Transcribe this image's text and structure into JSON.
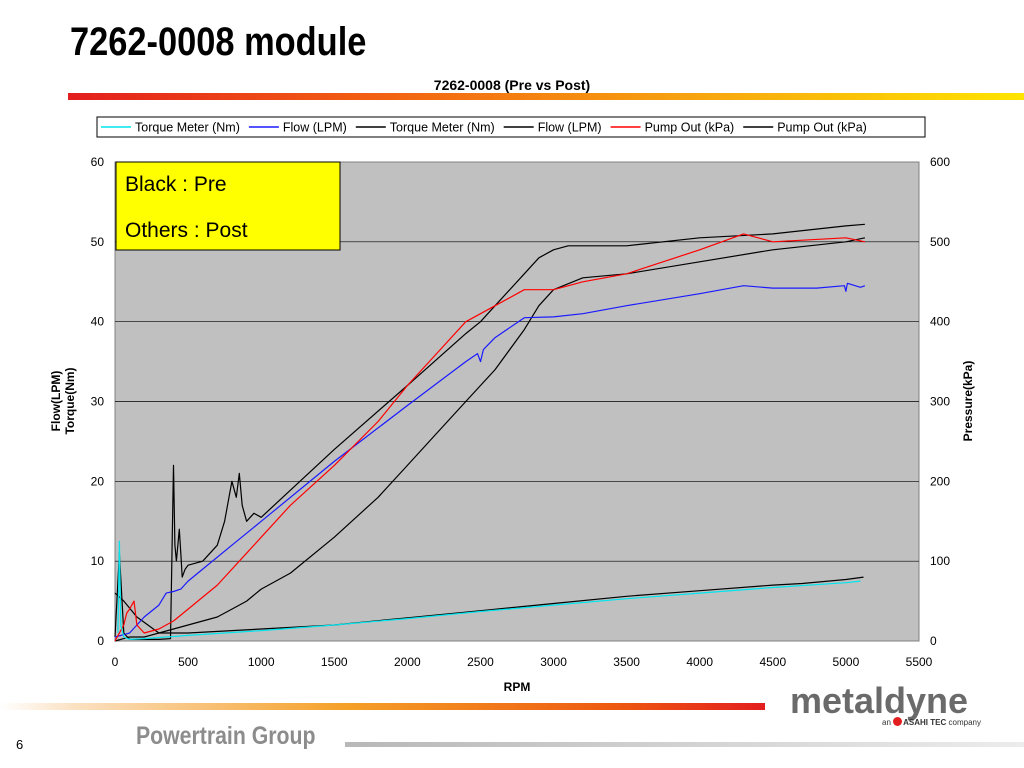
{
  "slide": {
    "title": "7262-0008 module",
    "page_number": "6",
    "footer": "Powertrain Group",
    "logo_text": "metaldyne",
    "logo_prefix": "an",
    "logo_brand": "ASAHI TEC",
    "logo_suffix": "company"
  },
  "annotation": {
    "line1": "Black : Pre",
    "line2": "Others : Post"
  },
  "colors": {
    "plot_background": "#c0c0c0",
    "cyan": "#00e5ee",
    "blue": "#1a1aff",
    "red": "#ff0000",
    "black": "#000000",
    "annotation_fill": "#ffff00"
  },
  "chart_data": {
    "type": "line",
    "title": "7262-0008 (Pre vs Post)",
    "xlabel": "RPM",
    "ylabel_lines": [
      "Flow(LPM)",
      "Torque(Nm)"
    ],
    "y2label": "Pressure(kPa)",
    "xlim": [
      0,
      5500
    ],
    "ylim": [
      0,
      60
    ],
    "y2lim": [
      0,
      600
    ],
    "x_ticks": [
      0,
      500,
      1000,
      1500,
      2000,
      2500,
      3000,
      3500,
      4000,
      4500,
      5000,
      5500
    ],
    "y_ticks": [
      0,
      10,
      20,
      30,
      40,
      50,
      60
    ],
    "y2_ticks": [
      0,
      100,
      200,
      300,
      400,
      500,
      600
    ],
    "grid": "horizontal",
    "legend_position": "top",
    "series": [
      {
        "name": "Torque Meter (Nm)",
        "color": "#00e5ee",
        "axis": "left",
        "x": [
          20,
          30,
          40,
          60,
          100,
          200,
          500,
          1000,
          1500,
          2000,
          2500,
          3000,
          3500,
          4000,
          4500,
          5000,
          5100
        ],
        "y": [
          1,
          12.5,
          2,
          0.5,
          0.2,
          0.3,
          0.7,
          1.3,
          2.0,
          2.8,
          3.7,
          4.5,
          5.3,
          6.0,
          6.7,
          7.3,
          7.5
        ]
      },
      {
        "name": "Flow (LPM)",
        "color": "#1a1aff",
        "axis": "left",
        "x": [
          0,
          100,
          200,
          300,
          350,
          400,
          450,
          500,
          600,
          800,
          1000,
          1500,
          2000,
          2400,
          2480,
          2500,
          2520,
          2600,
          2800,
          3000,
          3200,
          3500,
          4000,
          4300,
          4500,
          4800,
          4990,
          5000,
          5010,
          5100,
          5130
        ],
        "y": [
          0.5,
          1,
          3,
          4.5,
          6,
          6.2,
          6.5,
          7.5,
          9,
          12,
          15,
          22.5,
          29.5,
          35,
          36,
          35,
          36.5,
          38,
          40.5,
          40.6,
          41,
          42,
          43.5,
          44.5,
          44.2,
          44.2,
          44.5,
          43.8,
          44.8,
          44.3,
          44.5
        ]
      },
      {
        "name": "Torque Meter (Nm)",
        "color": "#000000",
        "axis": "left",
        "x": [
          0,
          60,
          150,
          300,
          500,
          1000,
          1500,
          2000,
          2500,
          3000,
          3500,
          4000,
          4500,
          4700,
          5000,
          5120
        ],
        "y": [
          6,
          5,
          3,
          1,
          1,
          1.5,
          2,
          2.9,
          3.8,
          4.7,
          5.6,
          6.3,
          7,
          7.2,
          7.7,
          8
        ]
      },
      {
        "name": "Flow (LPM)",
        "color": "#000000",
        "axis": "left",
        "x": [
          0,
          30,
          60,
          100,
          200,
          300,
          380,
          400,
          410,
          420,
          440,
          450,
          460,
          480,
          500,
          600,
          700,
          750,
          800,
          830,
          850,
          870,
          900,
          950,
          1000,
          1500,
          2000,
          2400,
          2500,
          2600,
          2800,
          2900,
          3000,
          3100,
          3500,
          4000,
          4500,
          5000,
          5130
        ],
        "y": [
          0.5,
          11,
          1,
          0.2,
          0.2,
          0.2,
          0.3,
          22,
          12,
          10,
          14,
          11,
          8,
          9,
          9.5,
          10,
          12,
          15,
          20,
          18,
          21,
          17,
          15,
          16,
          15.5,
          24,
          32,
          38.5,
          40,
          42,
          46,
          48,
          49,
          49.5,
          49.5,
          50.5,
          51,
          52,
          52.2
        ]
      },
      {
        "name": "Pump Out (kPa)",
        "color": "#ff0000",
        "axis": "right",
        "x": [
          0,
          60,
          80,
          100,
          130,
          150,
          200,
          300,
          400,
          500,
          700,
          900,
          1000,
          1200,
          1500,
          1800,
          2000,
          2200,
          2400,
          2500,
          2600,
          2800,
          3000,
          3200,
          3500,
          4000,
          4300,
          4500,
          5000,
          5130
        ],
        "y": [
          0,
          20,
          35,
          40,
          50,
          20,
          10,
          15,
          25,
          40,
          70,
          110,
          130,
          170,
          220,
          275,
          320,
          360,
          400,
          410,
          420,
          440,
          440,
          450,
          460,
          490,
          510,
          500,
          505,
          500
        ]
      },
      {
        "name": "Pump Out (kPa)",
        "color": "#000000",
        "axis": "right",
        "x": [
          0,
          100,
          200,
          300,
          500,
          700,
          800,
          900,
          1000,
          1200,
          1500,
          1800,
          2000,
          2200,
          2400,
          2500,
          2600,
          2800,
          2900,
          3000,
          3200,
          3500,
          4000,
          4500,
          5000,
          5130
        ],
        "y": [
          0,
          5,
          5,
          10,
          20,
          30,
          40,
          50,
          65,
          85,
          130,
          180,
          220,
          260,
          300,
          320,
          340,
          390,
          420,
          440,
          455,
          460,
          475,
          490,
          500,
          505
        ]
      }
    ]
  }
}
